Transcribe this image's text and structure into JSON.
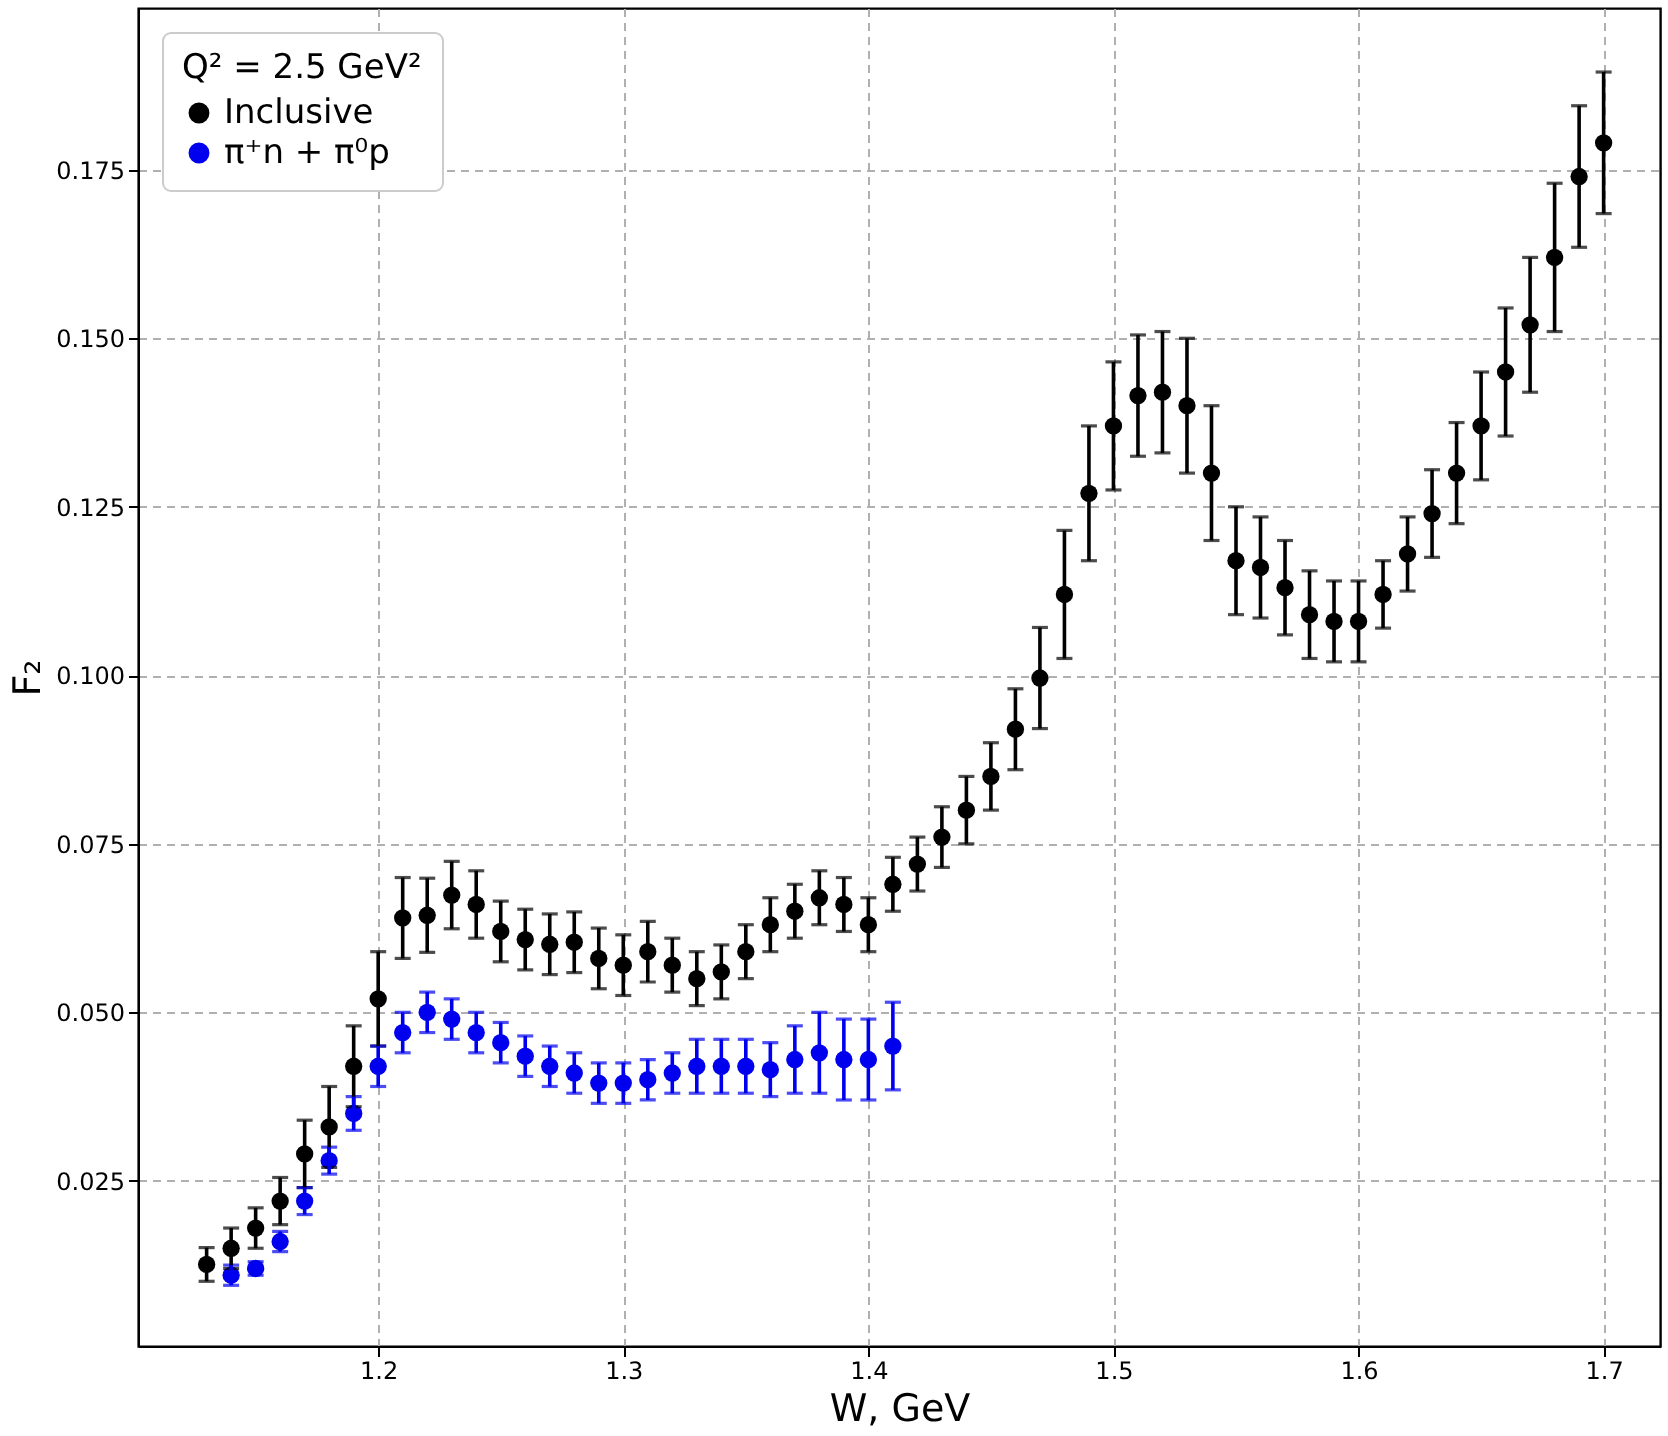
{
  "chart_data": {
    "type": "scatter",
    "xlabel": "W, GeV",
    "ylabel": "F₂",
    "legend_title": "Q² = 2.5 GeV²",
    "legend": "top left",
    "grid": true,
    "marker": "circle",
    "xlim": [
      1.102,
      1.723
    ],
    "xticks": [
      1.2,
      1.3,
      1.4,
      1.5,
      1.6,
      1.7
    ],
    "ylim": [
      0.0005,
      0.199
    ],
    "yticks": [
      {
        "value": 0.025,
        "label": "0.025"
      },
      {
        "value": 0.05,
        "label": "0.050"
      },
      {
        "value": 0.075,
        "label": "0.075"
      },
      {
        "value": 0.1,
        "label": "0.100"
      },
      {
        "value": 0.125,
        "label": "0.125"
      },
      {
        "value": 0.15,
        "label": "0.150"
      },
      {
        "value": 0.175,
        "label": "0.175"
      }
    ],
    "series": [
      {
        "name": "Inclusive",
        "color": "#000000",
        "x": [
          1.13,
          1.14,
          1.15,
          1.16,
          1.17,
          1.18,
          1.19,
          1.2,
          1.21,
          1.22,
          1.23,
          1.24,
          1.25,
          1.26,
          1.27,
          1.28,
          1.29,
          1.3,
          1.31,
          1.32,
          1.33,
          1.34,
          1.35,
          1.36,
          1.37,
          1.38,
          1.39,
          1.4,
          1.41,
          1.42,
          1.43,
          1.44,
          1.45,
          1.46,
          1.47,
          1.48,
          1.49,
          1.5,
          1.51,
          1.52,
          1.53,
          1.54,
          1.55,
          1.56,
          1.57,
          1.58,
          1.59,
          1.6,
          1.61,
          1.62,
          1.63,
          1.64,
          1.65,
          1.66,
          1.67,
          1.68,
          1.69,
          1.7
        ],
        "values": [
          0.0126,
          0.015,
          0.018,
          0.022,
          0.029,
          0.033,
          0.042,
          0.052,
          0.064,
          0.0644,
          0.0674,
          0.066,
          0.062,
          0.0608,
          0.0601,
          0.0604,
          0.058,
          0.057,
          0.059,
          0.057,
          0.055,
          0.056,
          0.059,
          0.063,
          0.065,
          0.067,
          0.066,
          0.063,
          0.069,
          0.072,
          0.076,
          0.08,
          0.085,
          0.092,
          0.0996,
          0.112,
          0.127,
          0.137,
          0.1415,
          0.142,
          0.14,
          0.13,
          0.117,
          0.116,
          0.113,
          0.109,
          0.108,
          0.108,
          0.112,
          0.118,
          0.124,
          0.13,
          0.137,
          0.145,
          0.152,
          0.162,
          0.174,
          0.179
        ],
        "errors": [
          0.0025,
          0.003,
          0.003,
          0.0035,
          0.005,
          0.006,
          0.006,
          0.007,
          0.006,
          0.0055,
          0.005,
          0.005,
          0.0045,
          0.0045,
          0.0045,
          0.0045,
          0.0045,
          0.0045,
          0.0045,
          0.004,
          0.004,
          0.004,
          0.004,
          0.004,
          0.004,
          0.004,
          0.004,
          0.004,
          0.004,
          0.004,
          0.0045,
          0.005,
          0.005,
          0.006,
          0.0075,
          0.0095,
          0.01,
          0.0095,
          0.009,
          0.009,
          0.01,
          0.01,
          0.008,
          0.0075,
          0.007,
          0.0065,
          0.006,
          0.006,
          0.005,
          0.0055,
          0.0065,
          0.0075,
          0.008,
          0.0095,
          0.01,
          0.011,
          0.0105,
          0.0105
        ]
      },
      {
        "name": "π⁺n + π⁰p",
        "color": "#0000ee",
        "x": [
          1.14,
          1.15,
          1.16,
          1.17,
          1.18,
          1.19,
          1.2,
          1.21,
          1.22,
          1.23,
          1.24,
          1.25,
          1.26,
          1.27,
          1.28,
          1.29,
          1.3,
          1.31,
          1.32,
          1.33,
          1.34,
          1.35,
          1.36,
          1.37,
          1.38,
          1.39,
          1.4,
          1.41
        ],
        "values": [
          0.011,
          0.012,
          0.016,
          0.022,
          0.028,
          0.035,
          0.042,
          0.047,
          0.05,
          0.049,
          0.047,
          0.0455,
          0.0435,
          0.042,
          0.041,
          0.0395,
          0.0395,
          0.04,
          0.041,
          0.042,
          0.042,
          0.042,
          0.0415,
          0.043,
          0.044,
          0.043,
          0.043,
          0.045
        ],
        "errors": [
          0.0015,
          0.001,
          0.0015,
          0.002,
          0.002,
          0.0025,
          0.003,
          0.003,
          0.003,
          0.003,
          0.003,
          0.003,
          0.003,
          0.003,
          0.003,
          0.003,
          0.003,
          0.003,
          0.003,
          0.004,
          0.004,
          0.004,
          0.004,
          0.005,
          0.006,
          0.006,
          0.006,
          0.0065
        ]
      }
    ]
  }
}
